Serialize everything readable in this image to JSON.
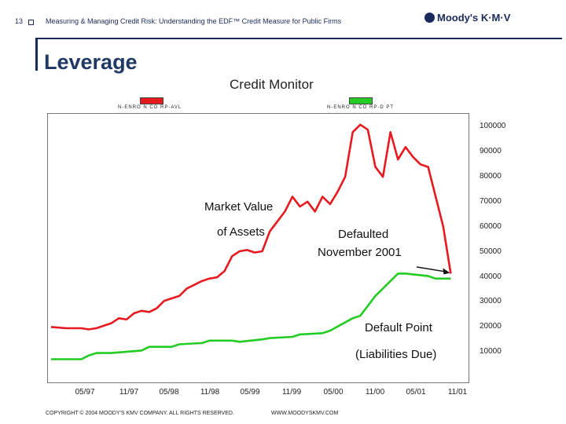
{
  "header": {
    "slide_number": "13",
    "title": "Measuring & Managing Credit Risk: Understanding the EDF™ Credit Measure for Public Firms",
    "logo_text": "Moody's K·M·V"
  },
  "section_title": "Leverage",
  "chart_data": {
    "type": "line",
    "title": "Credit Monitor",
    "legend": [
      "N-ENRO N CO RP-AVL",
      "N-ENRO N CO RP-D PT"
    ],
    "x_tick_labels": [
      "05/97",
      "11/97",
      "05/98",
      "11/98",
      "05/99",
      "11/99",
      "05/00",
      "11/00",
      "05/01",
      "11/01"
    ],
    "y_tick_labels": [
      "100000",
      "90000",
      "80000",
      "70000",
      "60000",
      "50000",
      "40000",
      "30000",
      "20000",
      "10000"
    ],
    "ylim": [
      0,
      110000
    ],
    "xlim": [
      0,
      54
    ],
    "series": [
      {
        "name": "N-ENRO N CO RP-AVL",
        "color": "#e8191e",
        "x": [
          0,
          2,
          4,
          5,
          6,
          8,
          9,
          10,
          11,
          12,
          13,
          14,
          15,
          16,
          17,
          18,
          19,
          20,
          21,
          22,
          23,
          24,
          25,
          26,
          27,
          28,
          29,
          30,
          31,
          32,
          33,
          34,
          35,
          36,
          37,
          38,
          39,
          40,
          41,
          42,
          43,
          44,
          45,
          46,
          47,
          48,
          49,
          50,
          51,
          52,
          53
        ],
        "values": [
          19500,
          19000,
          19000,
          18500,
          19000,
          21000,
          23000,
          22500,
          25000,
          26000,
          25500,
          27000,
          30000,
          31000,
          32000,
          35000,
          36500,
          38000,
          39000,
          39500,
          42000,
          48000,
          50000,
          50500,
          49500,
          50000,
          58000,
          62000,
          66000,
          72000,
          68000,
          70000,
          66000,
          72000,
          69000,
          74000,
          80000,
          98000,
          101000,
          99000,
          84000,
          80000,
          98000,
          87000,
          92000,
          88000,
          85000,
          84000,
          72000,
          60000,
          41000
        ]
      },
      {
        "name": "N-ENRO N CO RP-D PT",
        "color": "#22cc22",
        "x": [
          0,
          4,
          5,
          6,
          8,
          12,
          13,
          16,
          17,
          20,
          21,
          24,
          25,
          28,
          29,
          32,
          33,
          36,
          37,
          40,
          41,
          43,
          44,
          46,
          47,
          50,
          51,
          53
        ],
        "values": [
          6500,
          6500,
          8000,
          9000,
          9000,
          10000,
          11500,
          11500,
          12500,
          13000,
          14000,
          14000,
          13500,
          14500,
          15000,
          15500,
          16500,
          17000,
          18000,
          23000,
          24000,
          32000,
          35000,
          41000,
          41000,
          40000,
          39000,
          39000
        ]
      }
    ],
    "annotations": {
      "market_value_line1": "Market Value",
      "market_value_line2": "of Assets",
      "defaulted_line1": "Defaulted",
      "defaulted_line2": "November 2001",
      "default_point_line1": "Default Point",
      "default_point_line2": "(Liabilities Due)"
    }
  },
  "footer": {
    "copyright": "COPYRIGHT © 2004 MOODY'S KMV COMPANY. ALL RIGHTS RESERVED.",
    "website": "WWW.MOODYSKMV.COM"
  }
}
